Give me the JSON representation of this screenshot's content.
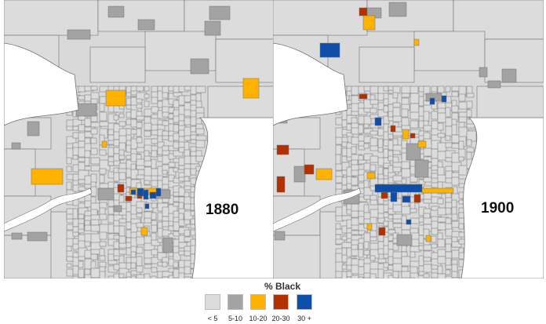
{
  "maps": [
    {
      "id": "1880",
      "year_label": "1880"
    },
    {
      "id": "1900",
      "year_label": "1900"
    }
  ],
  "legend": {
    "title": "% Black",
    "classes": [
      {
        "label": "< 5",
        "color": "#dcdcdc"
      },
      {
        "label": "5-10",
        "color": "#a3a3a3"
      },
      {
        "label": "10-20",
        "color": "#ffb300"
      },
      {
        "label": "20-30",
        "color": "#b33000"
      },
      {
        "label": "30 +",
        "color": "#0f4ea8"
      }
    ]
  },
  "colors": {
    "base": "#d9d9d9",
    "water": "#ffffff",
    "boundary": "#707070"
  }
}
